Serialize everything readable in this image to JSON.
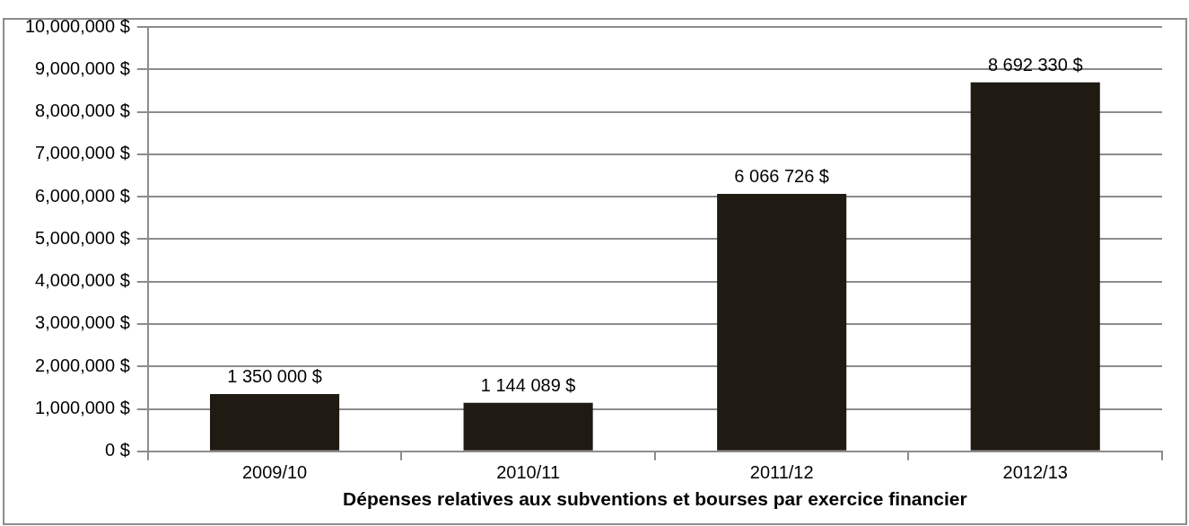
{
  "chart_data": {
    "type": "bar",
    "xlabel": "Dépenses relatives aux subventions et bourses par exercice financier",
    "categories": [
      "2009/10",
      "2010/11",
      "2011/12",
      "2012/13"
    ],
    "values": [
      1350000,
      1144089,
      6066726,
      8692330
    ],
    "value_labels": [
      "1 350 000 $",
      "1 144 089 $",
      "6 066 726 $",
      "8 692 330 $"
    ],
    "color": "#1f1a12",
    "ylim": [
      0,
      10000000
    ],
    "yticks": [
      {
        "value": 0,
        "label": "0 $"
      },
      {
        "value": 1000000,
        "label": "1,000,000 $"
      },
      {
        "value": 2000000,
        "label": "2,000,000 $"
      },
      {
        "value": 3000000,
        "label": "3,000,000 $"
      },
      {
        "value": 4000000,
        "label": "4,000,000 $"
      },
      {
        "value": 5000000,
        "label": "5,000,000 $"
      },
      {
        "value": 6000000,
        "label": "6,000,000 $"
      },
      {
        "value": 7000000,
        "label": "7,000,000 $"
      },
      {
        "value": 8000000,
        "label": "8,000,000 $"
      },
      {
        "value": 9000000,
        "label": "9,000,000 $"
      },
      {
        "value": 10000000,
        "label": "10,000,000 $"
      }
    ],
    "grid": "y"
  }
}
